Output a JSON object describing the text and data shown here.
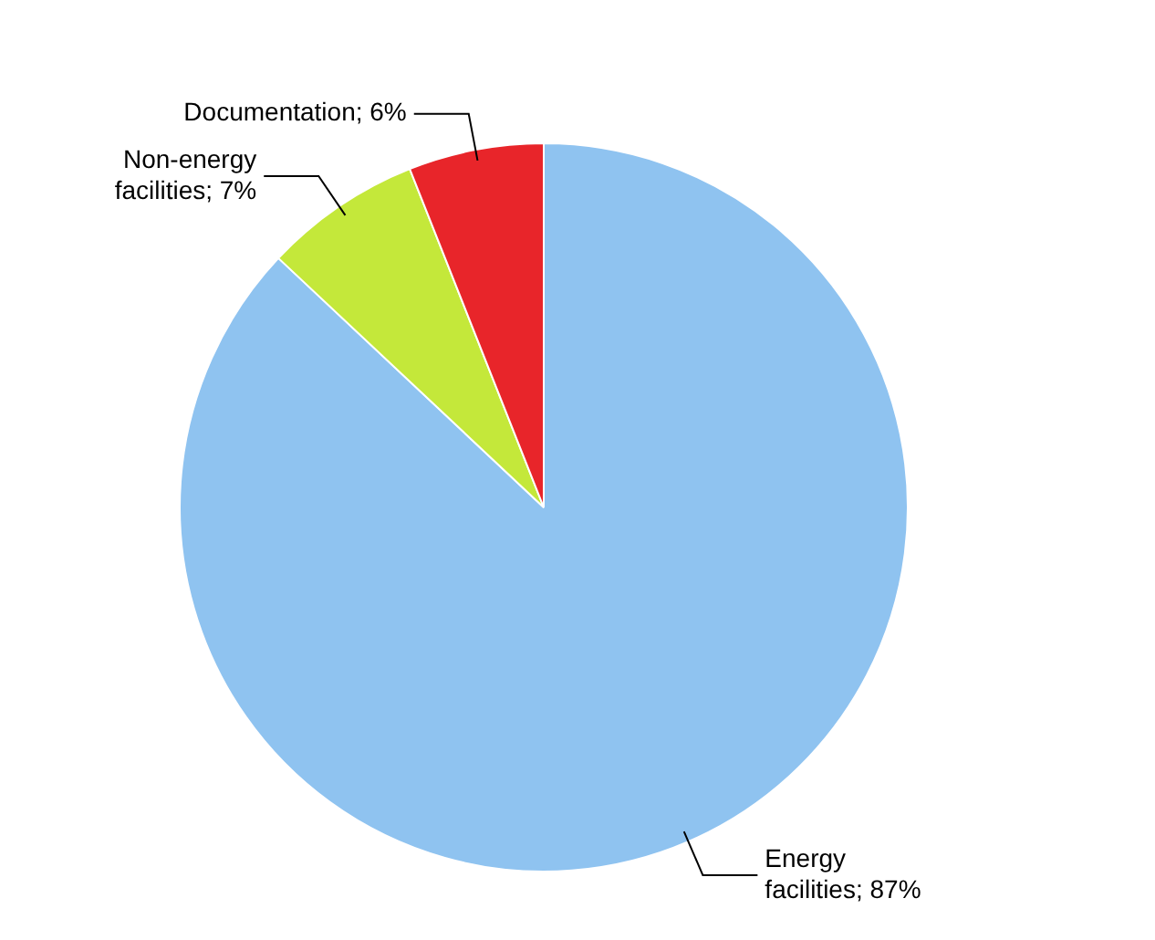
{
  "chart_data": {
    "type": "pie",
    "categories": [
      "Energy facilities",
      "Non-energy facilities",
      "Documentation"
    ],
    "values": [
      87,
      7,
      6
    ],
    "colors": [
      "#8fc3f0",
      "#c4e83a",
      "#e8252a"
    ],
    "value_labels": [
      "87%",
      "7%",
      "6%"
    ],
    "legend": false
  }
}
